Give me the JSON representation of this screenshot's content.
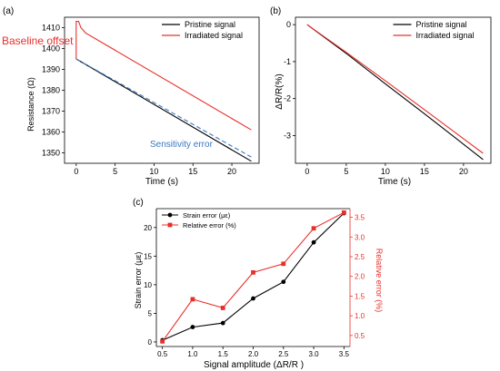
{
  "chart_data": [
    {
      "type": "line",
      "panel_label": "(a)",
      "xlabel": "Time (s)",
      "ylabel": "Resistance (Ω)",
      "xlim": [
        -1.5,
        23.5
      ],
      "ylim": [
        1345,
        1415
      ],
      "xticks": [
        0,
        5,
        10,
        15,
        20
      ],
      "yticks": [
        1350,
        1360,
        1370,
        1380,
        1390,
        1400,
        1410
      ],
      "legend_position": "top-right",
      "series": [
        {
          "name": "Pristine signal",
          "color": "#000000",
          "style": "solid",
          "x": [
            0,
            22.5
          ],
          "y": [
            1395,
            1346
          ]
        },
        {
          "name": "Irradiated signal",
          "color": "#e8302a",
          "style": "solid",
          "x": [
            0,
            0,
            0.3,
            0.6,
            1.2,
            22.5
          ],
          "y": [
            1395,
            1413,
            1413,
            1410,
            1407.5,
            1361
          ]
        },
        {
          "name": "",
          "color": "#3a78c3",
          "style": "dashed",
          "x": [
            0,
            22.5
          ],
          "y": [
            1395,
            1348
          ]
        }
      ],
      "annotations": [
        {
          "text": "Baseline offset",
          "color": "#e8302a"
        },
        {
          "text": "Sensitivity error",
          "color": "#3a78c3"
        }
      ]
    },
    {
      "type": "line",
      "panel_label": "(b)",
      "xlabel": "Time (s)",
      "ylabel": "ΔR/R(%)",
      "xlim": [
        -1.5,
        23.5
      ],
      "ylim": [
        -3.75,
        0.2
      ],
      "xticks": [
        0,
        5,
        10,
        15,
        20
      ],
      "yticks": [
        -3,
        -2,
        -1,
        0
      ],
      "legend_position": "top-right",
      "series": [
        {
          "name": "Pristine signal",
          "color": "#000000",
          "x": [
            0,
            5,
            10,
            15,
            22.5
          ],
          "y": [
            0,
            -0.78,
            -1.6,
            -2.41,
            -3.65
          ]
        },
        {
          "name": "Irradiated signal",
          "color": "#e8302a",
          "x": [
            0,
            5,
            10,
            15,
            22.5
          ],
          "y": [
            0,
            -0.75,
            -1.52,
            -2.3,
            -3.48
          ]
        }
      ]
    },
    {
      "type": "line",
      "panel_label": "(c)",
      "xlabel": "Signal amplitude (ΔR/R )",
      "ylabel": "Strain error (με)",
      "ylabel_right": "Relative error (%)",
      "x": [
        0.5,
        1.0,
        1.5,
        2.0,
        2.5,
        3.0,
        3.5
      ],
      "xlim": [
        0.4,
        3.6
      ],
      "ylim": [
        -0.8,
        23.3
      ],
      "ylim_right": [
        0.22,
        3.72
      ],
      "xticks": [
        0.5,
        1.0,
        1.5,
        2.0,
        2.5,
        3.0,
        3.5
      ],
      "yticks": [
        0,
        5,
        10,
        15,
        20
      ],
      "yticks_right": [
        0.5,
        1.0,
        1.5,
        2.0,
        2.5,
        3.0,
        3.5
      ],
      "legend_position": "top-left",
      "series": [
        {
          "name": "Strain error (με)",
          "color": "#000000",
          "marker": "circle",
          "axis": "left",
          "values": [
            0.3,
            2.6,
            3.3,
            7.6,
            10.5,
            17.4,
            22.5
          ]
        },
        {
          "name": "Relative error (%)",
          "color": "#e8302a",
          "marker": "square",
          "axis": "right",
          "values": [
            0.35,
            1.42,
            1.2,
            2.1,
            2.32,
            3.22,
            3.62
          ]
        }
      ]
    }
  ]
}
